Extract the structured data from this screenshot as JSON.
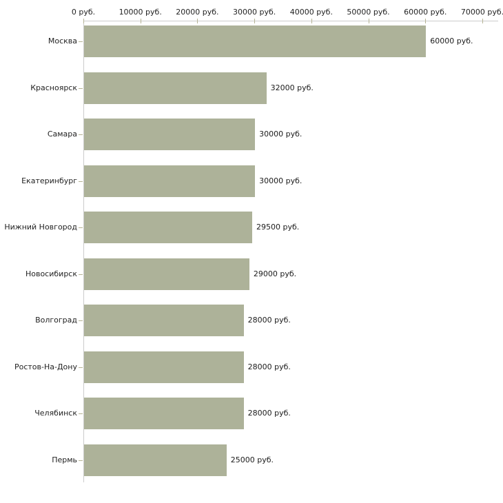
{
  "chart_data": {
    "type": "bar",
    "orientation": "horizontal",
    "title": "",
    "xlabel": "",
    "ylabel": "",
    "unit": "руб.",
    "categories": [
      "Москва",
      "Красноярск",
      "Самара",
      "Екатеринбург",
      "Нижний Новгород",
      "Новосибирск",
      "Волгоград",
      "Ростов-На-Дону",
      "Челябинск",
      "Пермь"
    ],
    "values": [
      60000,
      32000,
      30000,
      30000,
      29500,
      29000,
      28000,
      28000,
      28000,
      25000
    ],
    "value_labels": [
      "60000 руб.",
      "32000 руб.",
      "30000 руб.",
      "30000 руб.",
      "29500 руб.",
      "29000 руб.",
      "28000 руб.",
      "28000 руб.",
      "28000 руб.",
      "25000 руб."
    ],
    "x_tick_values": [
      0,
      10000,
      20000,
      30000,
      40000,
      50000,
      60000,
      70000
    ],
    "x_tick_labels": [
      "0 руб.",
      "10000 руб.",
      "20000 руб.",
      "30000 руб.",
      "40000 руб.",
      "50000 руб.",
      "60000 руб.",
      "70000 руб."
    ],
    "xlim": [
      0,
      70000
    ],
    "grid": false,
    "legend": false,
    "colors": {
      "bar_fill": "#adb299",
      "axis_line": "#cccccc",
      "tick_mark": "#b5b394",
      "text": "#222222"
    }
  }
}
